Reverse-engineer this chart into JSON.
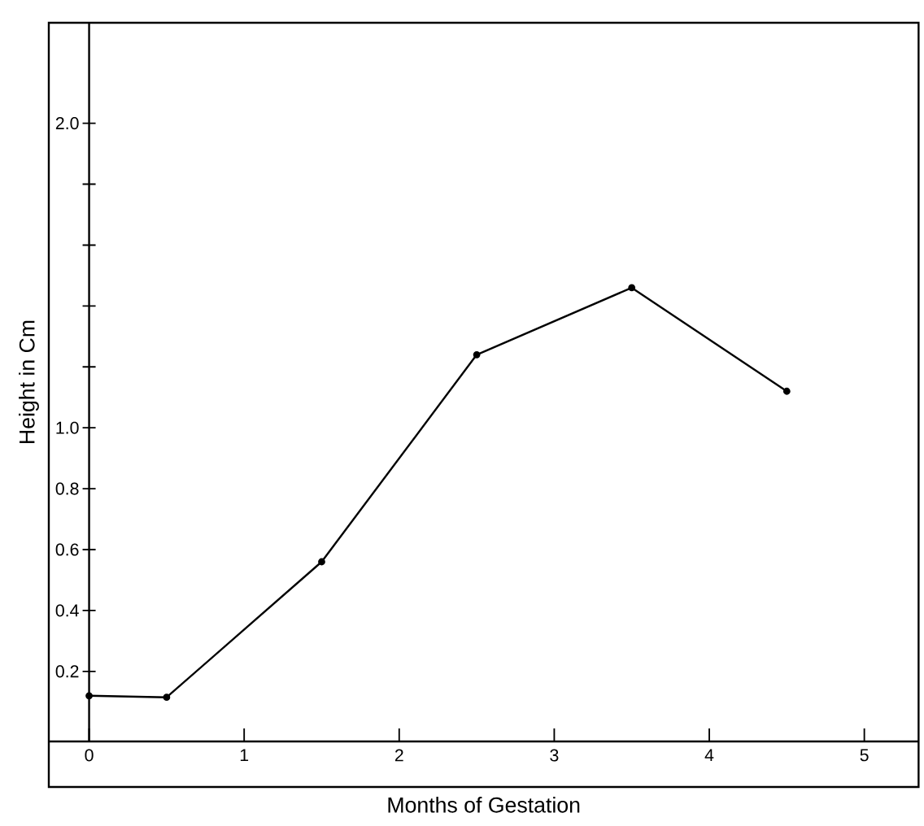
{
  "chart_data": {
    "type": "line",
    "xlabel": "Months of Gestation",
    "ylabel": "Height in Cm",
    "x": [
      0,
      0.5,
      1.5,
      2.5,
      3.5,
      4.5
    ],
    "series": [
      {
        "color": "#000000",
        "values": [
          0.12,
          0.115,
          0.56,
          1.24,
          1.46,
          1.12
        ]
      }
    ],
    "xlim": [
      -0.26,
      5.35
    ],
    "ylim": [
      -0.03,
      2.33
    ],
    "xticks": [
      0,
      1,
      2,
      3,
      4,
      5
    ],
    "yticks": [
      {
        "value": 0.2,
        "label": "0.2"
      },
      {
        "value": 0.4,
        "label": "0.4"
      },
      {
        "value": 0.6,
        "label": "0.6"
      },
      {
        "value": 0.8,
        "label": "0.8"
      },
      {
        "value": 1.0,
        "label": "1.0"
      },
      {
        "value": 1.2,
        "label": null
      },
      {
        "value": 1.4,
        "label": null
      },
      {
        "value": 1.6,
        "label": null
      },
      {
        "value": 1.8,
        "label": null
      },
      {
        "value": 2.0,
        "label": "2.0"
      }
    ],
    "marker": "circle",
    "line_style": "solid"
  }
}
